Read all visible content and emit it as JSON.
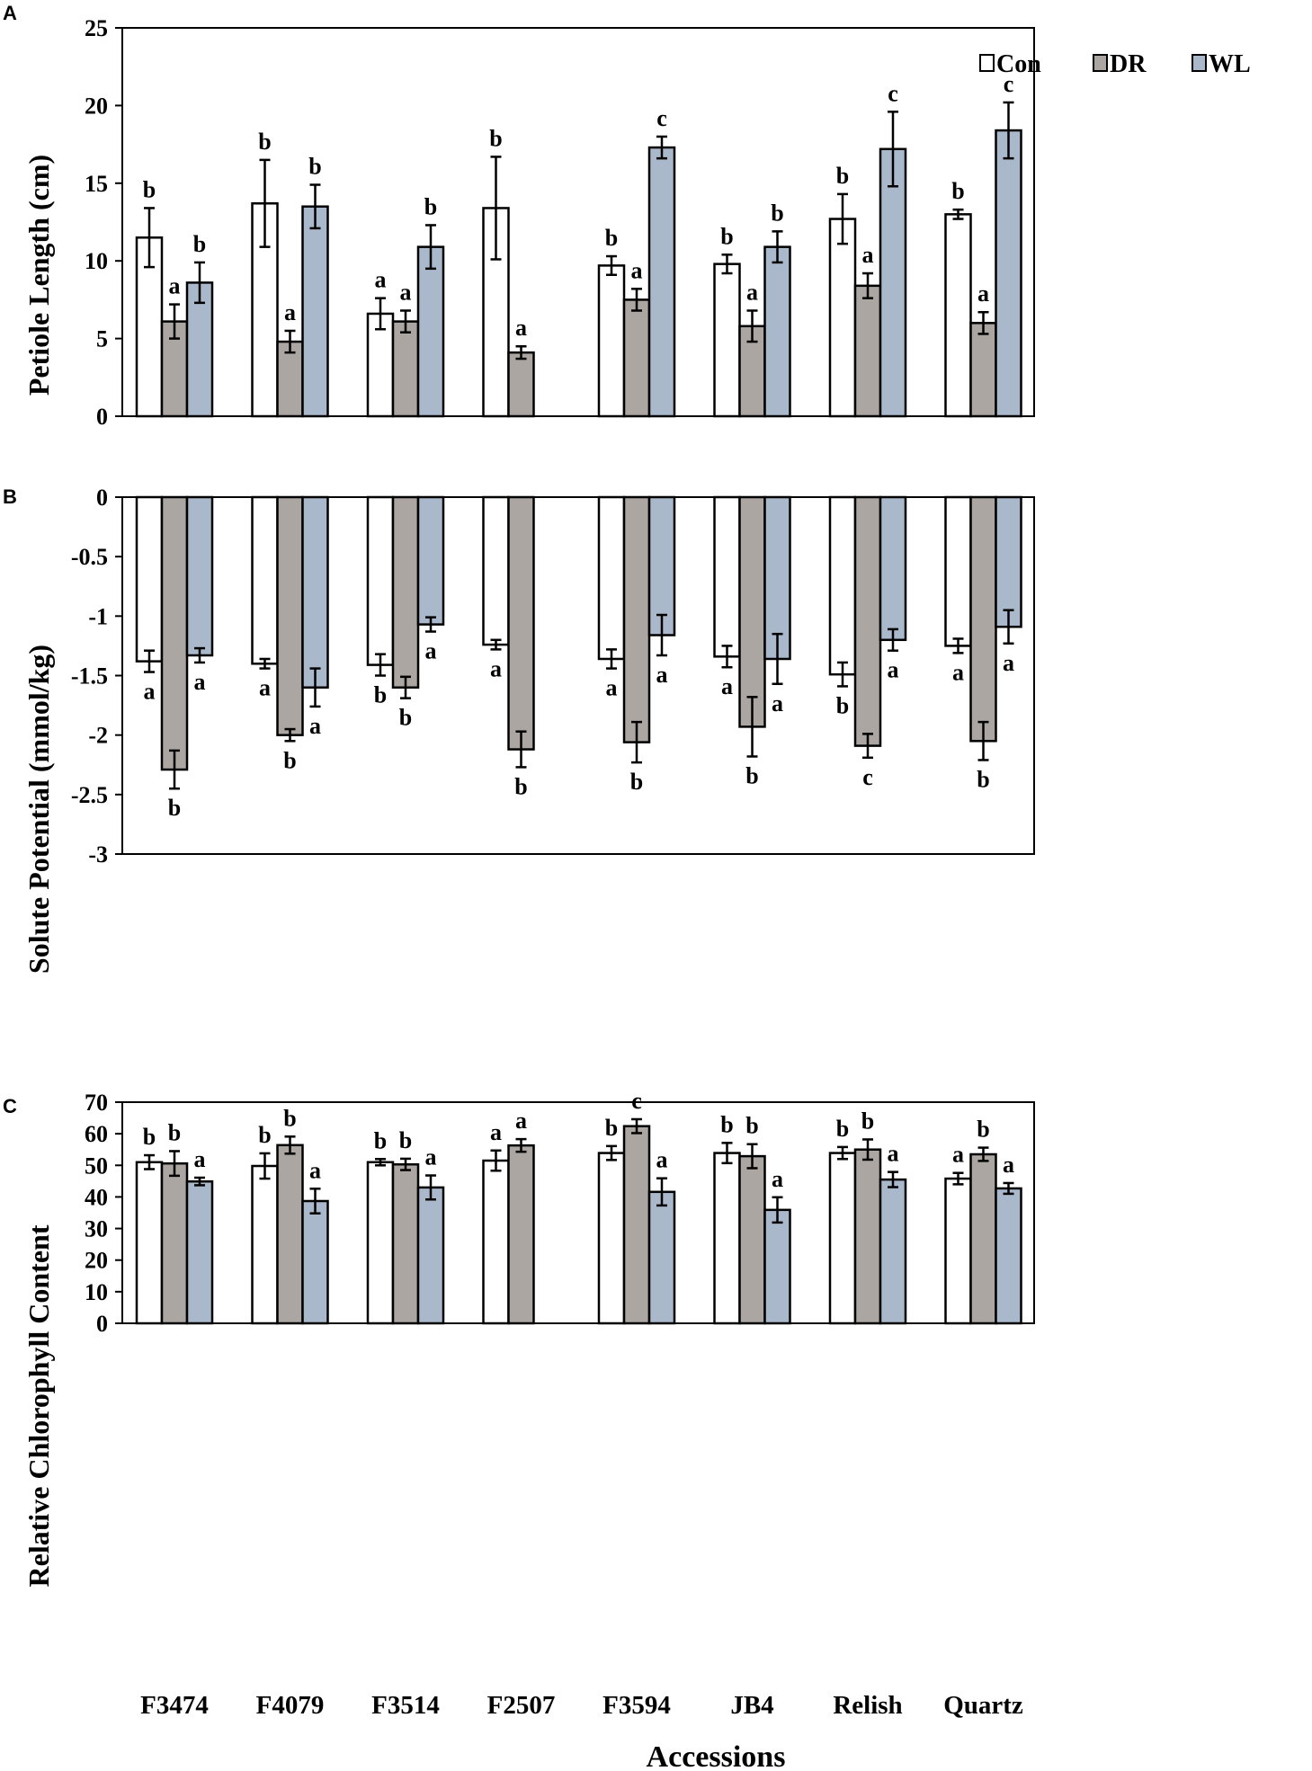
{
  "colors": {
    "Con": "#ffffff",
    "DR": "#aca6a2",
    "WL": "#aab8cc",
    "stroke": "#000000"
  },
  "xlabel": "Accessions",
  "categories": [
    "F3474",
    "F4079",
    "F3514",
    "F2507",
    "F3594",
    "JB4",
    "Relish",
    "Quartz"
  ],
  "chart_data": [
    {
      "panel": "A",
      "type": "bar",
      "ylabel": "Petiole Length (cm)",
      "ylim": [
        0,
        25
      ],
      "yticks": [
        "0",
        "5",
        "10",
        "15",
        "20",
        "25"
      ],
      "ytick_values": [
        0,
        5,
        10,
        15,
        20,
        25
      ],
      "legend": [
        "Con",
        "DR",
        "WL"
      ],
      "legend_position": "top-right",
      "series": [
        {
          "name": "Con",
          "values": [
            11.5,
            13.7,
            6.6,
            13.4,
            9.7,
            9.8,
            12.7,
            13.0
          ],
          "errors": [
            1.9,
            2.8,
            1.0,
            3.3,
            0.6,
            0.6,
            1.6,
            0.3
          ],
          "letters": [
            "b",
            "b",
            "a",
            "b",
            "b",
            "b",
            "b",
            "b"
          ]
        },
        {
          "name": "DR",
          "values": [
            6.1,
            4.8,
            6.1,
            4.1,
            7.5,
            5.8,
            8.4,
            6.0
          ],
          "errors": [
            1.1,
            0.7,
            0.7,
            0.4,
            0.7,
            1.0,
            0.8,
            0.7
          ],
          "letters": [
            "a",
            "a",
            "a",
            "a",
            "a",
            "a",
            "a",
            "a"
          ]
        },
        {
          "name": "WL",
          "values": [
            8.6,
            13.5,
            10.9,
            null,
            17.3,
            10.9,
            17.2,
            18.4
          ],
          "errors": [
            1.3,
            1.4,
            1.4,
            null,
            0.7,
            1.0,
            2.4,
            1.8
          ],
          "letters": [
            "b",
            "b",
            "b",
            "",
            "c",
            "b",
            "c",
            "c"
          ]
        }
      ]
    },
    {
      "panel": "B",
      "type": "bar",
      "ylabel": "Solute Potential (mmol/kg)",
      "ylim": [
        -3,
        0
      ],
      "yticks": [
        "0",
        "-0.5",
        "-1",
        "-1.5",
        "-2",
        "-2.5",
        "-3"
      ],
      "ytick_values": [
        0,
        -0.5,
        -1,
        -1.5,
        -2,
        -2.5,
        -3
      ],
      "series": [
        {
          "name": "Con",
          "values": [
            -1.38,
            -1.4,
            -1.41,
            -1.24,
            -1.36,
            -1.34,
            -1.49,
            -1.25
          ],
          "errors": [
            0.09,
            0.04,
            0.09,
            0.04,
            0.08,
            0.09,
            0.1,
            0.06
          ],
          "letters": [
            "a",
            "a",
            "b",
            "a",
            "a",
            "a",
            "b",
            "a"
          ]
        },
        {
          "name": "DR",
          "values": [
            -2.29,
            -2.0,
            -1.6,
            -2.12,
            -2.06,
            -1.93,
            -2.09,
            -2.05
          ],
          "errors": [
            0.16,
            0.05,
            0.09,
            0.15,
            0.17,
            0.25,
            0.1,
            0.16
          ],
          "letters": [
            "b",
            "b",
            "b",
            "b",
            "b",
            "b",
            "c",
            "b"
          ]
        },
        {
          "name": "WL",
          "values": [
            -1.33,
            -1.6,
            -1.07,
            null,
            -1.16,
            -1.36,
            -1.2,
            -1.09
          ],
          "errors": [
            0.06,
            0.16,
            0.06,
            null,
            0.17,
            0.21,
            0.09,
            0.14
          ],
          "letters": [
            "a",
            "a",
            "a",
            "",
            "a",
            "a",
            "a",
            "a"
          ]
        }
      ]
    },
    {
      "panel": "C",
      "type": "bar",
      "ylabel": "Relative Chlorophyll Content",
      "ylim": [
        0,
        70
      ],
      "yticks": [
        "0",
        "10",
        "20",
        "30",
        "40",
        "50",
        "60",
        "70"
      ],
      "ytick_values": [
        0,
        10,
        20,
        30,
        40,
        50,
        60,
        70
      ],
      "series": [
        {
          "name": "Con",
          "values": [
            51.0,
            49.8,
            51.0,
            51.5,
            53.9,
            53.9,
            53.9,
            45.8
          ],
          "errors": [
            2.2,
            4.0,
            1.0,
            3.2,
            2.2,
            3.2,
            1.9,
            1.8
          ],
          "letters": [
            "b",
            "b",
            "b",
            "a",
            "b",
            "b",
            "b",
            "a"
          ]
        },
        {
          "name": "DR",
          "values": [
            50.6,
            56.4,
            50.3,
            56.3,
            62.4,
            52.9,
            55.0,
            53.5
          ],
          "errors": [
            3.9,
            2.7,
            1.8,
            2.0,
            2.2,
            3.8,
            3.2,
            2.1
          ],
          "letters": [
            "b",
            "b",
            "b",
            "a",
            "c",
            "b",
            "b",
            "b"
          ]
        },
        {
          "name": "WL",
          "values": [
            44.9,
            38.7,
            43.0,
            null,
            41.6,
            35.9,
            45.5,
            42.7
          ],
          "errors": [
            1.2,
            3.9,
            3.8,
            null,
            4.3,
            4.0,
            2.4,
            1.7
          ],
          "letters": [
            "a",
            "a",
            "a",
            "",
            "a",
            "a",
            "a",
            "a"
          ]
        }
      ]
    }
  ]
}
